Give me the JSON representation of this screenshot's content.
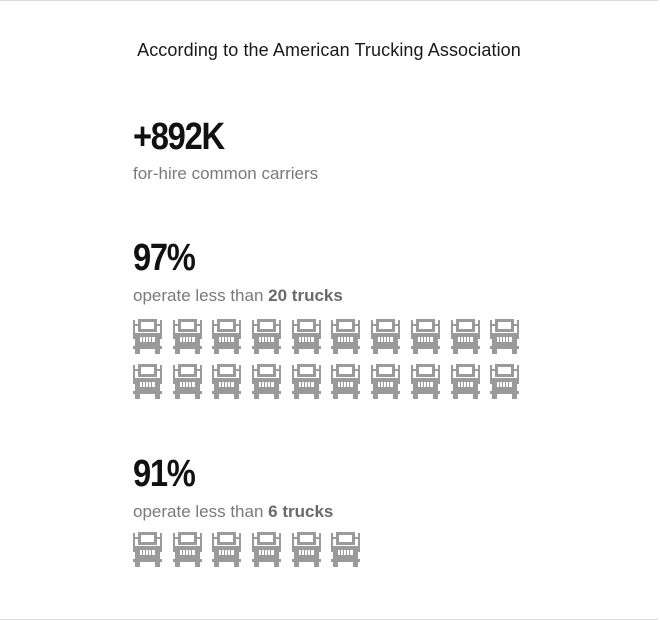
{
  "header": {
    "title": "According to the American Trucking Association"
  },
  "stats": [
    {
      "value": "+892K",
      "caption_prefix": "for-hire common carriers",
      "caption_bold": "",
      "truck_count": 0
    },
    {
      "value": "97%",
      "caption_prefix": "operate less than ",
      "caption_bold": "20 trucks",
      "truck_count": 20
    },
    {
      "value": "91%",
      "caption_prefix": "operate less than ",
      "caption_bold": "6 trucks",
      "truck_count": 6
    }
  ],
  "colors": {
    "truck_icon": "#9a9a9a",
    "value_text": "#111111",
    "caption_text": "#7a7a7a"
  },
  "icons": {
    "truck": "truck-front-icon"
  }
}
